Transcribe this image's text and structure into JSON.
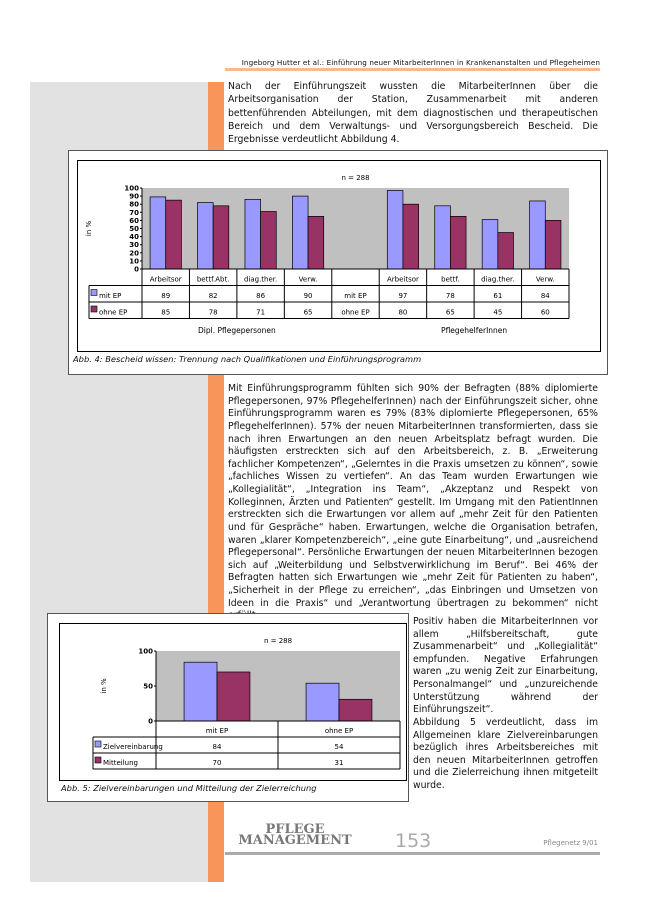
{
  "header": {
    "running_title": "Ingeborg Hutter et al.: Einführung neuer MitarbeiterInnen in Krankenanstalten und Pflegeheimen"
  },
  "paragraphs": {
    "p1": "Nach der Einführungszeit wussten die MitarbeiterInnen über die Arbeitsorganisation der Station, Zusammenarbeit mit anderen bettenführenden Abteilungen, mit dem diagnostischen und therapeutischen Bereich und dem Verwaltungs- und Versorgungsbereich Bescheid. Die Ergebnisse verdeutlicht Abbildung 4.",
    "p2": "Mit Einführungsprogramm fühlten sich 90% der Befragten (88% diplomierte Pflegepersonen, 97% PflegehelferInnen) nach der Einführungszeit sicher, ohne Einführungsprogramm waren es 79% (83% diplomierte Pflegepersonen, 65% PflegehelferInnen). 57% der neuen MitarbeiterInnen transformierten, dass sie nach ihren Erwartungen an den neuen Arbeitsplatz befragt wurden. Die häufigsten erstreckten sich auf den Arbeitsbereich, z. B. „Erweiterung fachlicher Kompetenzen“, „Gelerntes in die Praxis umsetzen zu können“, sowie „fachliches Wissen zu vertiefen“. An das Team wurden Erwartungen wie „Kollegialität“, „Integration ins Team“, „Akzeptanz und Respekt von Kolleginnen, Ärzten und Patienten“ gestellt. Im Umgang mit den PatientInnen erstreckten sich die Erwartungen vor allem auf „mehr Zeit für den Patienten und für Gespräche“ haben. Erwartungen, welche die Organisation betrafen, waren „klarer Kompetenzbereich“, „eine gute Einarbeitung“, und „ausreichend Pflegepersonal“. Persönliche Erwartungen der neuen MitarbeiterInnen bezogen sich auf „Weiterbildung und Selbstverwirklichung im Beruf“. Bei 46% der Befragten hatten sich Erwartungen wie „mehr Zeit für Patienten zu haben“, „Sicherheit in der Pflege zu erreichen“, „das Einbringen und Umsetzen von Ideen in die Praxis“ und „Verantwortung übertragen zu bekommen“ nicht erfüllt.",
    "p3": "Positiv haben die MitarbeiterInnen vor allem „Hilfsbereitschaft, gute Zusammenarbeit“ und „Kollegialität“ empfunden. Negative Erfahrungen waren „zu wenig Zeit zur Einarbeitung, Personalmangel“ und „unzureichende Unterstützung während der Einführungszeit“.",
    "p4": "Abbildung 5 verdeutlicht, dass im Allgemeinen klare Zielvereinbarungen bezüglich ihres Arbeitsbereiches mit den neuen MitarbeiterInnen getroffen und die Zielerreichung ihnen mitgeteilt wurde."
  },
  "colors": {
    "series1": "#9999ff",
    "series2": "#993366",
    "plot_bg": "#c0c0c0",
    "accent": "#f7955a"
  },
  "chart_data": [
    {
      "type": "bar",
      "title": "n = 288",
      "ylabel": "in %",
      "ylim": [
        0,
        100
      ],
      "yticks": [
        "0",
        "10",
        "20",
        "30",
        "40",
        "50",
        "60",
        "70",
        "80",
        "90",
        "100"
      ],
      "groups": [
        {
          "label": "Dipl. Pflegepersonen",
          "categories": [
            "Arbeitsor",
            "bettf.Abt.",
            "diag.ther.",
            "Verw."
          ],
          "series": [
            {
              "name": "mit EP",
              "values": [
                89,
                82,
                86,
                90
              ]
            },
            {
              "name": "ohne EP",
              "values": [
                85,
                78,
                71,
                65
              ]
            }
          ]
        },
        {
          "label": "PflegehelferInnen",
          "categories": [
            "Arbeitsor",
            "bettf.",
            "diag.ther.",
            "Verw."
          ],
          "series": [
            {
              "name": "mit EP",
              "values": [
                97,
                78,
                61,
                84
              ]
            },
            {
              "name": "ohne EP",
              "values": [
                80,
                65,
                45,
                60
              ]
            }
          ]
        }
      ],
      "caption": "Abb. 4: Bescheid wissen: Trennung nach Qualifikationen und Einführungsprogramm"
    },
    {
      "type": "bar",
      "title": "n = 288",
      "ylabel": "in %",
      "ylim": [
        0,
        100
      ],
      "yticks": [
        "0",
        "50",
        "100"
      ],
      "categories": [
        "mit EP",
        "ohne EP"
      ],
      "series": [
        {
          "name": "Zielvereinbarung",
          "values": [
            84,
            54
          ]
        },
        {
          "name": "Mitteilung",
          "values": [
            70,
            31
          ]
        }
      ],
      "caption": "Abb. 5: Zielvereinbarungen und Mitteilung der Zielerreichung"
    }
  ],
  "footer": {
    "logo": "PFLEGE MANAGEMENT",
    "page_number": "153",
    "issue": "Pflegenetz 9/01"
  }
}
